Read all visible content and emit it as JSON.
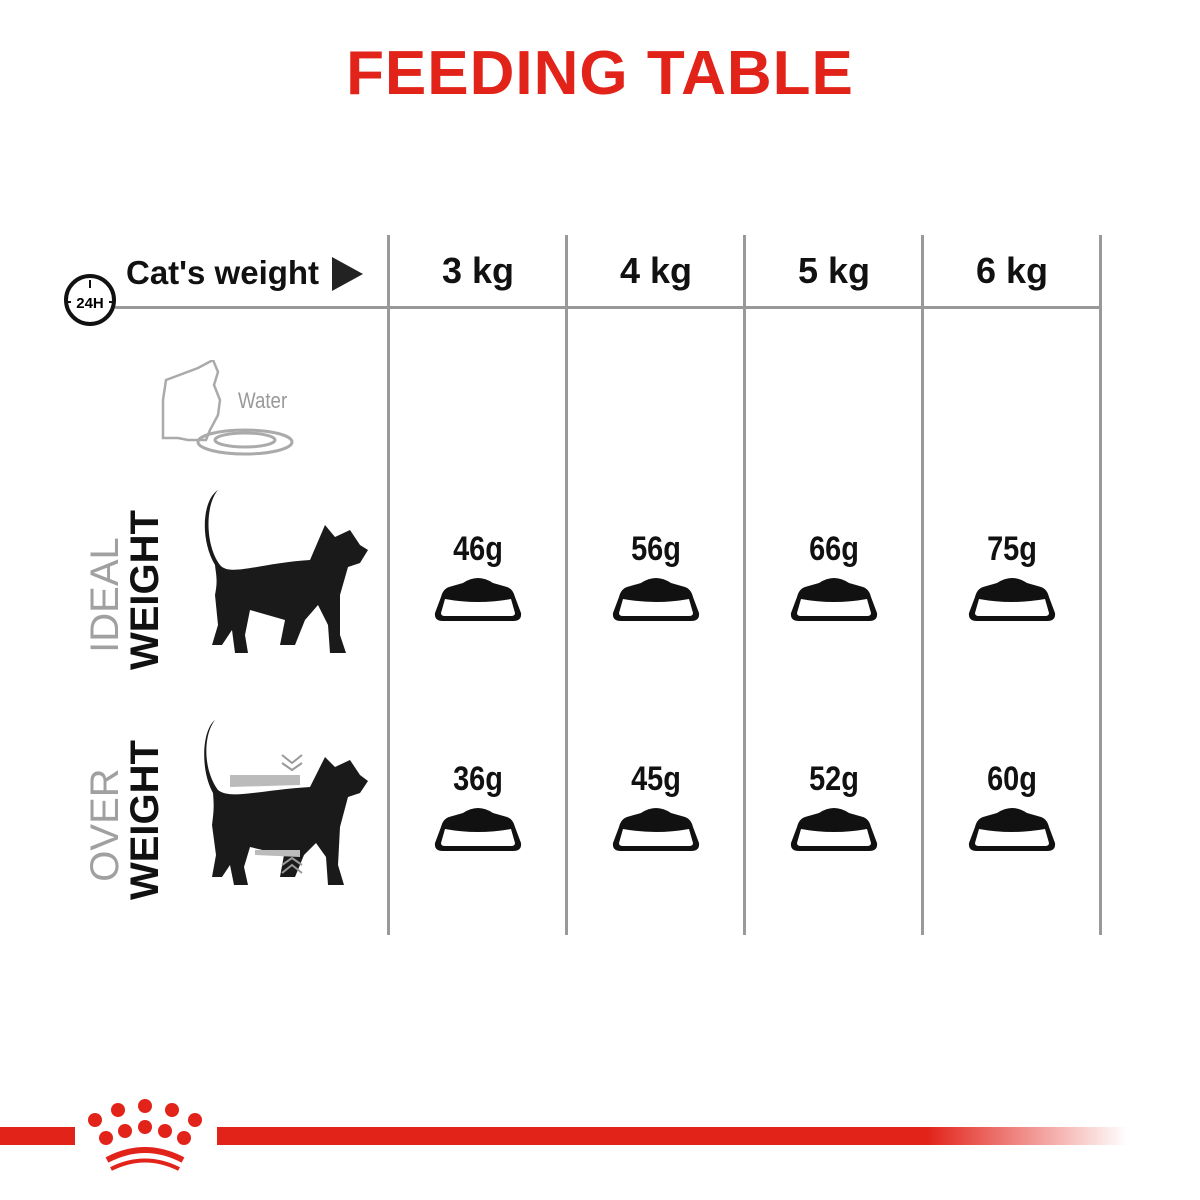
{
  "title": "FEEDING TABLE",
  "colors": {
    "brand_red": "#e2231a",
    "grid_gray": "#999999",
    "label_gray": "#a0a0a0",
    "text_dark": "#111111"
  },
  "header": {
    "icon": "24h-clock-icon",
    "clock_label": "24H",
    "label": "Cat's weight",
    "arrow_icon": "triangle-right-icon"
  },
  "water": {
    "icon": "cat-drinking-water-icon",
    "label": "Water"
  },
  "columns": [
    "3 kg",
    "4 kg",
    "5 kg",
    "6 kg"
  ],
  "rows": [
    {
      "label_top": "IDEAL",
      "label_bottom": "WEIGHT",
      "icon": "cat-silhouette-icon",
      "values": [
        "46g",
        "56g",
        "66g",
        "75g"
      ]
    },
    {
      "label_top": "OVER",
      "label_bottom": "WEIGHT",
      "icon": "overweight-cat-silhouette-icon",
      "values": [
        "36g",
        "45g",
        "52g",
        "60g"
      ]
    }
  ],
  "footer": {
    "logo": "royal-canin-crown-logo"
  }
}
